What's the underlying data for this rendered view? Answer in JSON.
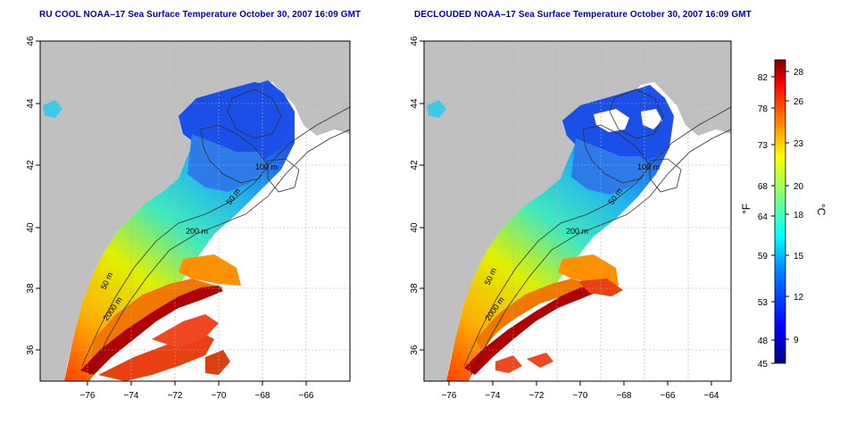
{
  "panels": [
    {
      "title": "RU COOL NOAA–17 Sea Surface Temperature October 30, 2007 16:09 GMT"
    },
    {
      "title": "DECLOUDED NOAA–17 Sea Surface Temperature October 30, 2007 16:09 GMT"
    }
  ],
  "map": {
    "lat_ticks": [
      "46",
      "44",
      "42",
      "40",
      "38",
      "36"
    ],
    "lon_ticks": [
      "−76",
      "−74",
      "−72",
      "−70",
      "−68",
      "−66",
      "−64"
    ],
    "lat_range": [
      35,
      46
    ],
    "lon_range": [
      -77.3,
      -62.8
    ],
    "land_color": "#c0c0c0",
    "contours": [
      "50 m",
      "100 m",
      "50 m",
      "200 m",
      "50 m",
      "2000 m"
    ],
    "contour_labels": {
      "a": "50 m",
      "b": "100 m",
      "c": "50 m",
      "d": "200 m",
      "e": "50 m",
      "f": "2000 m"
    }
  },
  "colorbar": {
    "fahrenheit_label": "°F",
    "celsius_label": "°C",
    "fahrenheit_ticks": [
      "82",
      "78",
      "73",
      "68",
      "64",
      "59",
      "53",
      "48",
      "45"
    ],
    "celsius_ticks": [
      "28",
      "26",
      "23",
      "20",
      "18",
      "15",
      "12",
      "9"
    ],
    "colors": [
      "#00007f",
      "#0000ff",
      "#007fff",
      "#00ffff",
      "#7fff7f",
      "#ffff00",
      "#ff7f00",
      "#ff0000",
      "#7f0000"
    ]
  }
}
